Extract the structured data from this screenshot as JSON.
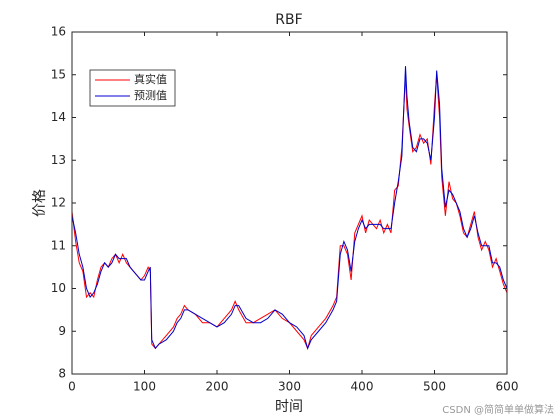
{
  "chart_data": {
    "type": "line",
    "title": "RBF",
    "xlabel": "时间",
    "ylabel": "价格",
    "watermark": "CSDN @简简单单做算法",
    "legend": "upper left",
    "x": [
      0,
      5,
      10,
      15,
      20,
      25,
      30,
      35,
      40,
      45,
      50,
      55,
      60,
      65,
      70,
      75,
      80,
      85,
      90,
      95,
      100,
      105,
      108,
      110,
      115,
      120,
      130,
      140,
      145,
      150,
      155,
      160,
      170,
      180,
      190,
      200,
      210,
      220,
      225,
      230,
      240,
      250,
      260,
      270,
      280,
      290,
      300,
      310,
      320,
      325,
      330,
      340,
      350,
      360,
      365,
      370,
      375,
      380,
      385,
      390,
      395,
      400,
      405,
      410,
      420,
      425,
      430,
      435,
      440,
      445,
      450,
      455,
      460,
      462,
      465,
      470,
      475,
      480,
      485,
      490,
      495,
      500,
      503,
      507,
      510,
      515,
      520,
      525,
      530,
      535,
      540,
      545,
      550,
      555,
      560,
      565,
      570,
      575,
      580,
      585,
      590,
      595,
      600
    ],
    "series": [
      {
        "name": "真实值",
        "color": "#ff0000",
        "values": [
          11.8,
          11.1,
          10.6,
          10.4,
          9.8,
          9.9,
          9.8,
          10.2,
          10.5,
          10.6,
          10.5,
          10.7,
          10.8,
          10.6,
          10.8,
          10.6,
          10.5,
          10.4,
          10.3,
          10.2,
          10.3,
          10.5,
          10.4,
          8.7,
          8.6,
          8.7,
          8.9,
          9.1,
          9.3,
          9.4,
          9.6,
          9.5,
          9.4,
          9.2,
          9.2,
          9.1,
          9.3,
          9.5,
          9.7,
          9.5,
          9.2,
          9.2,
          9.3,
          9.4,
          9.5,
          9.3,
          9.2,
          9.0,
          8.8,
          8.6,
          8.9,
          9.1,
          9.3,
          9.6,
          9.8,
          11.0,
          11.0,
          10.8,
          10.2,
          11.3,
          11.5,
          11.7,
          11.3,
          11.6,
          11.4,
          11.6,
          11.3,
          11.5,
          11.3,
          12.3,
          12.4,
          13.3,
          15.0,
          14.2,
          13.8,
          13.2,
          13.3,
          13.6,
          13.4,
          13.5,
          12.9,
          14.3,
          15.0,
          14.0,
          12.6,
          11.7,
          12.5,
          12.1,
          12.0,
          11.7,
          11.3,
          11.2,
          11.5,
          11.8,
          11.2,
          10.9,
          11.1,
          10.9,
          10.5,
          10.7,
          10.4,
          10.1,
          9.9
        ]
      },
      {
        "name": "预测值",
        "color": "#0000cc",
        "values": [
          11.7,
          11.3,
          10.8,
          10.5,
          10.0,
          9.8,
          9.9,
          10.1,
          10.4,
          10.6,
          10.5,
          10.6,
          10.8,
          10.7,
          10.7,
          10.7,
          10.5,
          10.4,
          10.3,
          10.2,
          10.2,
          10.4,
          10.5,
          8.8,
          8.6,
          8.7,
          8.8,
          9.0,
          9.2,
          9.3,
          9.5,
          9.5,
          9.4,
          9.3,
          9.2,
          9.1,
          9.2,
          9.4,
          9.6,
          9.6,
          9.3,
          9.2,
          9.2,
          9.3,
          9.5,
          9.4,
          9.2,
          9.1,
          8.9,
          8.6,
          8.8,
          9.0,
          9.2,
          9.5,
          9.7,
          10.8,
          11.1,
          10.9,
          10.4,
          11.1,
          11.4,
          11.6,
          11.4,
          11.5,
          11.5,
          11.5,
          11.4,
          11.4,
          11.4,
          12.0,
          12.5,
          13.1,
          15.2,
          14.5,
          13.9,
          13.3,
          13.2,
          13.5,
          13.5,
          13.4,
          13.0,
          14.0,
          15.1,
          14.3,
          12.8,
          11.9,
          12.3,
          12.2,
          12.0,
          11.8,
          11.4,
          11.2,
          11.4,
          11.7,
          11.3,
          11.0,
          11.0,
          11.0,
          10.6,
          10.6,
          10.5,
          10.2,
          10.0
        ]
      }
    ],
    "xlim": [
      0,
      600
    ],
    "xticks": [
      0,
      100,
      200,
      300,
      400,
      500,
      600
    ],
    "ylim": [
      8,
      16
    ],
    "yticks": [
      8,
      9,
      10,
      11,
      12,
      13,
      14,
      15,
      16
    ]
  }
}
